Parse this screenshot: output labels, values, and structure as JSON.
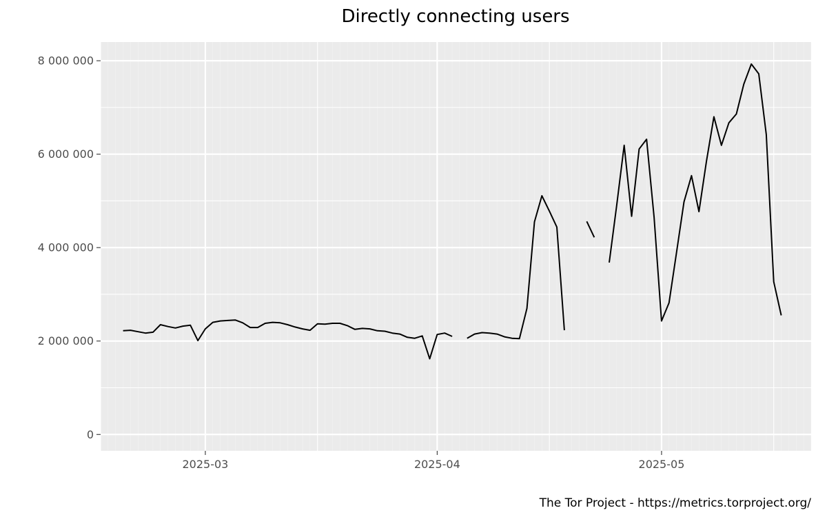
{
  "chart_data": {
    "type": "line",
    "title": "Directly connecting users",
    "caption": "The Tor Project - https://metrics.torproject.org/",
    "xlabel": "",
    "ylabel": "",
    "xlim": [
      "2025-02-15",
      "2025-05-21"
    ],
    "ylim": [
      -350000,
      8400000
    ],
    "x_ticks": [
      {
        "date": "2025-03-01",
        "label": "2025-03"
      },
      {
        "date": "2025-04-01",
        "label": "2025-04"
      },
      {
        "date": "2025-05-01",
        "label": "2025-05"
      }
    ],
    "x_minor_ticks": [
      "2025-02-15",
      "2025-03-16",
      "2025-04-16",
      "2025-05-16"
    ],
    "y_ticks": [
      {
        "value": 0,
        "label": "0"
      },
      {
        "value": 2000000,
        "label": "2 000 000"
      },
      {
        "value": 4000000,
        "label": "4 000 000"
      },
      {
        "value": 6000000,
        "label": "6 000 000"
      },
      {
        "value": 8000000,
        "label": "8 000 000"
      }
    ],
    "grid": true,
    "colors": {
      "panel": "#ebebeb",
      "grid": "#ffffff",
      "line": "#000000"
    },
    "series": [
      {
        "values": [
          [
            "2025-02-18",
            2220000
          ],
          [
            "2025-02-19",
            2230000
          ],
          [
            "2025-02-20",
            2200000
          ],
          [
            "2025-02-21",
            2170000
          ],
          [
            "2025-02-22",
            2190000
          ],
          [
            "2025-02-23",
            2350000
          ],
          [
            "2025-02-24",
            2310000
          ],
          [
            "2025-02-25",
            2280000
          ],
          [
            "2025-02-26",
            2320000
          ],
          [
            "2025-02-27",
            2340000
          ],
          [
            "2025-02-28",
            2010000
          ],
          [
            "2025-03-01",
            2260000
          ],
          [
            "2025-03-02",
            2400000
          ],
          [
            "2025-03-03",
            2430000
          ],
          [
            "2025-03-04",
            2440000
          ],
          [
            "2025-03-05",
            2450000
          ],
          [
            "2025-03-06",
            2390000
          ],
          [
            "2025-03-07",
            2290000
          ],
          [
            "2025-03-08",
            2290000
          ],
          [
            "2025-03-09",
            2380000
          ],
          [
            "2025-03-10",
            2400000
          ],
          [
            "2025-03-11",
            2390000
          ],
          [
            "2025-03-12",
            2350000
          ],
          [
            "2025-03-13",
            2300000
          ],
          [
            "2025-03-14",
            2260000
          ],
          [
            "2025-03-15",
            2230000
          ],
          [
            "2025-03-16",
            2370000
          ],
          [
            "2025-03-17",
            2360000
          ],
          [
            "2025-03-18",
            2380000
          ],
          [
            "2025-03-19",
            2380000
          ],
          [
            "2025-03-20",
            2330000
          ],
          [
            "2025-03-21",
            2250000
          ],
          [
            "2025-03-22",
            2270000
          ],
          [
            "2025-03-23",
            2260000
          ],
          [
            "2025-03-24",
            2220000
          ],
          [
            "2025-03-25",
            2210000
          ],
          [
            "2025-03-26",
            2170000
          ],
          [
            "2025-03-27",
            2150000
          ],
          [
            "2025-03-28",
            2080000
          ],
          [
            "2025-03-29",
            2060000
          ],
          [
            "2025-03-30",
            2110000
          ],
          [
            "2025-03-31",
            1620000
          ],
          [
            "2025-04-01",
            2140000
          ],
          [
            "2025-04-02",
            2170000
          ],
          [
            "2025-04-03",
            2100000
          ],
          null,
          [
            "2025-04-05",
            2060000
          ],
          [
            "2025-04-06",
            2150000
          ],
          [
            "2025-04-07",
            2180000
          ],
          [
            "2025-04-08",
            2170000
          ],
          [
            "2025-04-09",
            2150000
          ],
          [
            "2025-04-10",
            2090000
          ],
          [
            "2025-04-11",
            2060000
          ],
          [
            "2025-04-12",
            2050000
          ],
          [
            "2025-04-13",
            2700000
          ],
          [
            "2025-04-14",
            4550000
          ],
          [
            "2025-04-15",
            5110000
          ],
          [
            "2025-04-16",
            4780000
          ],
          [
            "2025-04-17",
            4440000
          ],
          [
            "2025-04-18",
            2230000
          ],
          null,
          [
            "2025-04-21",
            4560000
          ],
          [
            "2025-04-22",
            4220000
          ],
          null,
          [
            "2025-04-24",
            3680000
          ],
          [
            "2025-04-25",
            4900000
          ],
          [
            "2025-04-26",
            6190000
          ],
          [
            "2025-04-27",
            4670000
          ],
          [
            "2025-04-28",
            6110000
          ],
          [
            "2025-04-29",
            6320000
          ],
          [
            "2025-04-30",
            4650000
          ],
          [
            "2025-05-01",
            2430000
          ],
          [
            "2025-05-02",
            2820000
          ],
          [
            "2025-05-03",
            3900000
          ],
          [
            "2025-05-04",
            4980000
          ],
          [
            "2025-05-05",
            5540000
          ],
          [
            "2025-05-06",
            4770000
          ],
          [
            "2025-05-07",
            5850000
          ],
          [
            "2025-05-08",
            6800000
          ],
          [
            "2025-05-09",
            6190000
          ],
          [
            "2025-05-10",
            6670000
          ],
          [
            "2025-05-11",
            6860000
          ],
          [
            "2025-05-12",
            7500000
          ],
          [
            "2025-05-13",
            7930000
          ],
          [
            "2025-05-14",
            7720000
          ],
          [
            "2025-05-15",
            6420000
          ],
          [
            "2025-05-16",
            3270000
          ],
          [
            "2025-05-17",
            2550000
          ]
        ]
      }
    ]
  }
}
